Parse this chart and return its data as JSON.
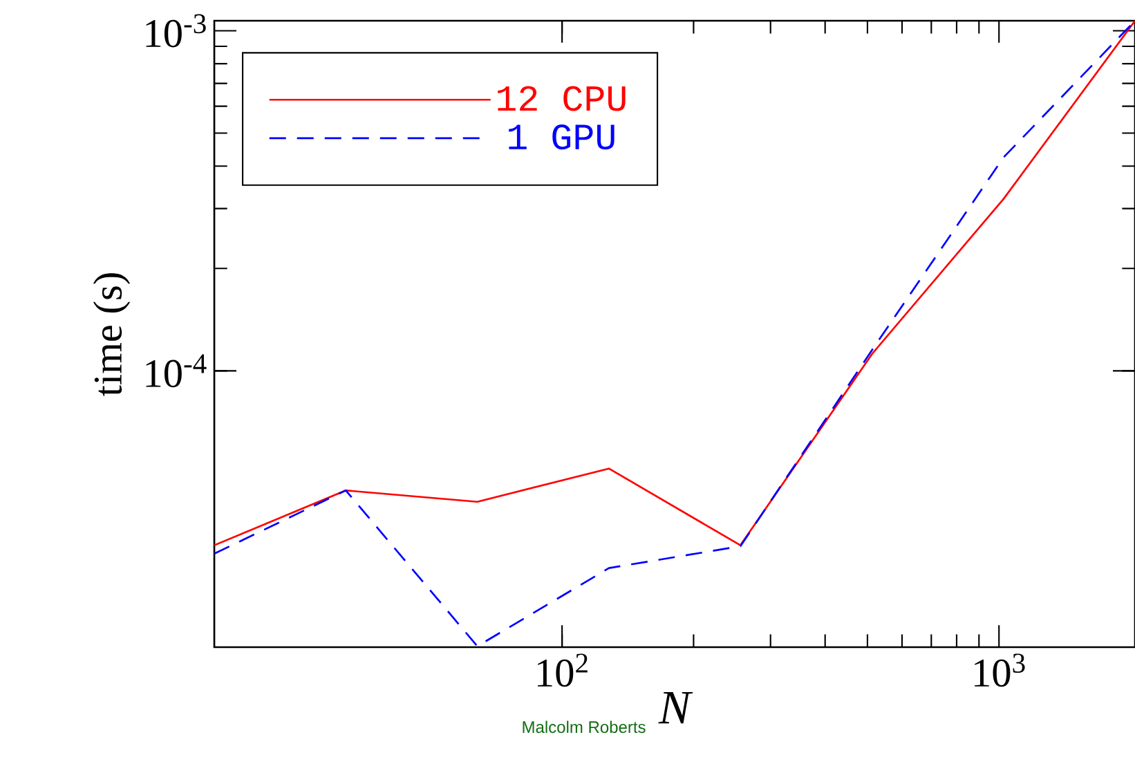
{
  "chart_data": {
    "type": "line",
    "xlabel": "N",
    "ylabel": "time (s)",
    "log": "xy",
    "legend": "top left",
    "marker": "none",
    "x": [
      16,
      32,
      64,
      128,
      256,
      512,
      1024,
      2048
    ],
    "xlim": [
      16,
      2048
    ],
    "ylim": [
      1.54e-05,
      0.00107
    ],
    "xticks": [
      {
        "value": 100,
        "label": "10$^{2}$"
      },
      {
        "value": 1000,
        "label": "10$^{3}$"
      }
    ],
    "yticks": [
      {
        "value": 0.0001,
        "label": "10$^{-4}$"
      },
      {
        "value": 0.001,
        "label": "10$^{-3}$"
      }
    ],
    "series": [
      {
        "name": "12 CPU",
        "color": "#ff0000",
        "line_style": "solid",
        "values": [
          3.07e-05,
          4.45e-05,
          4.12e-05,
          5.16e-05,
          3.07e-05,
          0.000112,
          0.00032,
          0.00107
        ]
      },
      {
        "name": "1 GPU",
        "color": "#0000ff",
        "line_style": "dashed",
        "values": [
          2.9e-05,
          4.45e-05,
          1.55e-05,
          2.63e-05,
          3.05e-05,
          0.000115,
          0.000424,
          0.00107
        ]
      }
    ],
    "annotations": [
      "Malcolm Roberts"
    ]
  }
}
